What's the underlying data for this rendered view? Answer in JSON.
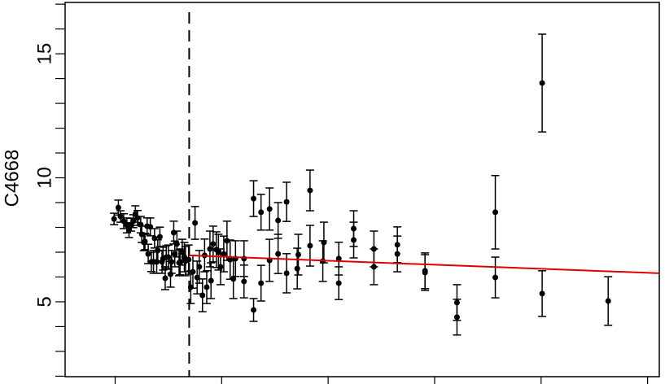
{
  "chart_data": {
    "type": "errorbar-scatter",
    "y_label": "C4668",
    "xlim": [
      0.53,
      6.11
    ],
    "ylim": [
      1.98,
      17.07
    ],
    "xticks": [
      1,
      2,
      3,
      4,
      5,
      6
    ],
    "yticks": [
      5,
      10,
      15
    ],
    "yminor_ticks": [
      2,
      3,
      4,
      6,
      7,
      8,
      9,
      11,
      12,
      13,
      14,
      16,
      17
    ],
    "vline": 1.695,
    "series": [
      {
        "color": "#000000",
        "x": [
          0.99,
          1.03,
          1.05,
          1.08,
          1.11,
          1.13,
          1.15,
          1.17,
          1.19,
          1.21,
          1.24,
          1.25,
          1.27,
          1.28,
          1.3,
          1.31,
          1.33,
          1.34,
          1.36,
          1.37,
          1.39,
          1.4,
          1.42,
          1.44,
          1.45,
          1.47,
          1.48,
          1.5,
          1.52,
          1.53,
          1.55,
          1.56,
          1.58,
          1.6,
          1.61,
          1.63,
          1.65,
          1.66,
          1.69,
          1.71,
          1.73,
          1.75,
          1.77,
          1.79,
          1.82,
          1.84,
          1.86,
          1.89,
          1.9,
          1.92,
          1.95,
          1.97,
          1.99,
          2.02,
          2.05,
          2.08,
          2.11,
          2.13,
          2.21,
          2.21,
          2.3,
          2.3,
          2.37,
          2.37,
          2.45,
          2.45,
          2.53,
          2.53,
          2.61,
          2.61,
          2.71,
          2.72,
          2.83,
          2.83,
          2.95,
          2.96,
          3.1,
          3.1,
          3.24,
          3.24,
          3.43,
          3.43,
          3.65,
          3.65,
          3.91,
          3.91,
          4.21,
          4.21,
          4.57,
          4.57,
          5.01,
          5.01,
          5.63
        ],
        "values": [
          8.34,
          8.8,
          8.44,
          8.25,
          8.08,
          7.89,
          8.11,
          8.25,
          8.54,
          8.38,
          8.11,
          7.72,
          7.39,
          7.43,
          8.05,
          6.93,
          8.02,
          6.61,
          6.61,
          7.56,
          6.61,
          7.07,
          7.62,
          6.61,
          6.74,
          5.95,
          6.8,
          6.8,
          6.11,
          6.61,
          7.79,
          6.93,
          7.33,
          6.57,
          6.61,
          7.0,
          6.8,
          6.64,
          6.7,
          5.59,
          6.21,
          8.18,
          5.98,
          6.41,
          5.26,
          6.87,
          5.59,
          7.13,
          5.85,
          7.33,
          7.1,
          7.0,
          6.41,
          6.93,
          7.46,
          6.7,
          5.92,
          6.74,
          5.82,
          6.74,
          4.67,
          9.16,
          5.75,
          8.61,
          6.67,
          8.74,
          8.28,
          6.93,
          6.15,
          9.03,
          6.34,
          6.9,
          7.26,
          9.49,
          6.64,
          7.39,
          5.75,
          6.74,
          7.49,
          7.95,
          6.41,
          7.13,
          6.93,
          7.3,
          6.25,
          6.18,
          4.97,
          4.38,
          5.98,
          8.61,
          5.33,
          13.82,
          5.03
        ],
        "errors": [
          0.23,
          0.3,
          0.23,
          0.3,
          0.3,
          0.3,
          0.26,
          0.26,
          0.33,
          0.3,
          0.33,
          0.33,
          0.33,
          0.33,
          0.33,
          0.39,
          0.36,
          0.39,
          0.46,
          0.39,
          0.46,
          0.43,
          0.39,
          0.46,
          0.46,
          0.46,
          0.46,
          0.49,
          0.52,
          0.46,
          0.46,
          0.52,
          0.52,
          0.52,
          0.52,
          0.52,
          0.59,
          0.59,
          0.59,
          0.66,
          0.66,
          0.66,
          0.66,
          0.66,
          0.66,
          0.66,
          0.66,
          0.72,
          0.72,
          0.72,
          0.72,
          0.72,
          0.72,
          0.72,
          0.79,
          0.79,
          0.79,
          0.72,
          0.66,
          0.72,
          0.46,
          0.72,
          0.72,
          0.72,
          0.85,
          0.85,
          0.72,
          0.79,
          0.79,
          0.79,
          0.82,
          0.82,
          0.82,
          0.82,
          0.82,
          0.82,
          0.66,
          0.66,
          0.72,
          0.72,
          0.72,
          0.72,
          0.72,
          0.72,
          0.72,
          0.72,
          0.72,
          0.72,
          0.82,
          1.48,
          0.92,
          1.97,
          0.98
        ]
      }
    ],
    "fit": {
      "color": "#e00000",
      "x": [
        1.695,
        6.11
      ],
      "values": [
        6.87,
        6.15
      ]
    }
  }
}
